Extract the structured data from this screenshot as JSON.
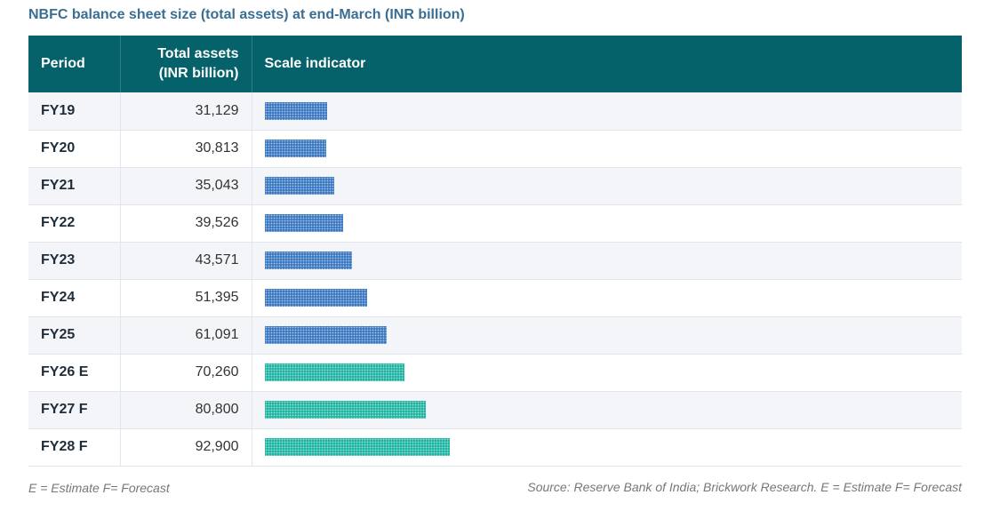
{
  "title": "NBFC balance sheet size (total assets) at end-March (INR billion)",
  "chart_data": {
    "type": "table",
    "headers": {
      "period": "Period",
      "value_line1": "Total assets",
      "value_line2": "(INR billion)",
      "scale": "Scale indicator"
    },
    "rows": [
      {
        "period": "FY19",
        "value": 31129,
        "value_label": "31,129",
        "kind": "actual"
      },
      {
        "period": "FY20",
        "value": 30813,
        "value_label": "30,813",
        "kind": "actual"
      },
      {
        "period": "FY21",
        "value": 35043,
        "value_label": "35,043",
        "kind": "actual"
      },
      {
        "period": "FY22",
        "value": 39526,
        "value_label": "39,526",
        "kind": "actual"
      },
      {
        "period": "FY23",
        "value": 43571,
        "value_label": "43,571",
        "kind": "actual"
      },
      {
        "period": "FY24",
        "value": 51395,
        "value_label": "51,395",
        "kind": "actual"
      },
      {
        "period": "FY25",
        "value": 61091,
        "value_label": "61,091",
        "kind": "actual"
      },
      {
        "period": "FY26 E",
        "value": 70260,
        "value_label": "70,260",
        "kind": "estimate"
      },
      {
        "period": "FY27 F",
        "value": 80800,
        "value_label": "80,800",
        "kind": "forecast"
      },
      {
        "period": "FY28 F",
        "value": 92900,
        "value_label": "92,900",
        "kind": "forecast"
      }
    ],
    "colors": {
      "actual": "#3b78c2",
      "estimate": "#20b5a3",
      "forecast": "#20b5a3",
      "header_bg": "#05616a",
      "title": "#3a6e93"
    }
  },
  "footer": {
    "left": "E = Estimate F= Forecast",
    "right": "Source: Reserve Bank of India; Brickwork Research. E = Estimate F= Forecast"
  }
}
